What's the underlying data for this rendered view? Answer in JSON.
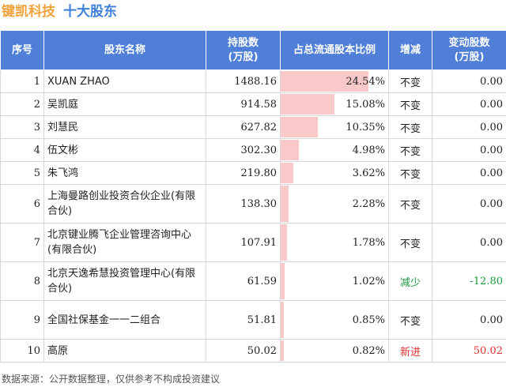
{
  "header": {
    "company": "键凯科技",
    "subtitle": "十大股东"
  },
  "chart_data": {
    "type": "table",
    "columns": [
      "序号",
      "股东名称",
      "持股数\n(万股)",
      "占总流通股本比例",
      "增减",
      "变动股数\n(万股)"
    ],
    "rows": [
      {
        "idx": "1",
        "name": "XUAN ZHAO",
        "shares": "1488.16",
        "ratio": 24.54,
        "ratio_label": "24.54%",
        "change": "不变",
        "delta": "0.00",
        "status": "same"
      },
      {
        "idx": "2",
        "name": "吴凯庭",
        "shares": "914.58",
        "ratio": 15.08,
        "ratio_label": "15.08%",
        "change": "不变",
        "delta": "0.00",
        "status": "same"
      },
      {
        "idx": "3",
        "name": "刘慧民",
        "shares": "627.82",
        "ratio": 10.35,
        "ratio_label": "10.35%",
        "change": "不变",
        "delta": "0.00",
        "status": "same"
      },
      {
        "idx": "4",
        "name": "伍文彬",
        "shares": "302.30",
        "ratio": 4.98,
        "ratio_label": "4.98%",
        "change": "不变",
        "delta": "0.00",
        "status": "same"
      },
      {
        "idx": "5",
        "name": "朱飞鸿",
        "shares": "219.80",
        "ratio": 3.62,
        "ratio_label": "3.62%",
        "change": "不变",
        "delta": "0.00",
        "status": "same"
      },
      {
        "idx": "6",
        "name": "上海曼路创业投资合伙企业(有限合伙)",
        "shares": "138.30",
        "ratio": 2.28,
        "ratio_label": "2.28%",
        "change": "不变",
        "delta": "0.00",
        "status": "same"
      },
      {
        "idx": "7",
        "name": "北京键业腾飞企业管理咨询中心(有限合伙)",
        "shares": "107.91",
        "ratio": 1.78,
        "ratio_label": "1.78%",
        "change": "不变",
        "delta": "0.00",
        "status": "same"
      },
      {
        "idx": "8",
        "name": "北京天逸希慧投资管理中心(有限合伙)",
        "shares": "61.59",
        "ratio": 1.02,
        "ratio_label": "1.02%",
        "change": "减少",
        "delta": "-12.80",
        "status": "decrease"
      },
      {
        "idx": "9",
        "name": "全国社保基金一一二组合",
        "shares": "51.81",
        "ratio": 0.85,
        "ratio_label": "0.85%",
        "change": "不变",
        "delta": "0.00",
        "status": "same"
      },
      {
        "idx": "10",
        "name": "高原",
        "shares": "50.02",
        "ratio": 0.82,
        "ratio_label": "0.82%",
        "change": "新进",
        "delta": "50.02",
        "status": "new"
      }
    ],
    "ratio_max": 30
  },
  "colors": {
    "header_bg": "#4f7fd6",
    "bar": "#f9c9c9",
    "decrease": "#1a9a3c",
    "new": "#e03030",
    "company": "#f2a23a",
    "subtitle": "#3d7fd9"
  },
  "footer": {
    "source": "数据来源：公开数据整理，仅供参考不构成投资建议"
  }
}
